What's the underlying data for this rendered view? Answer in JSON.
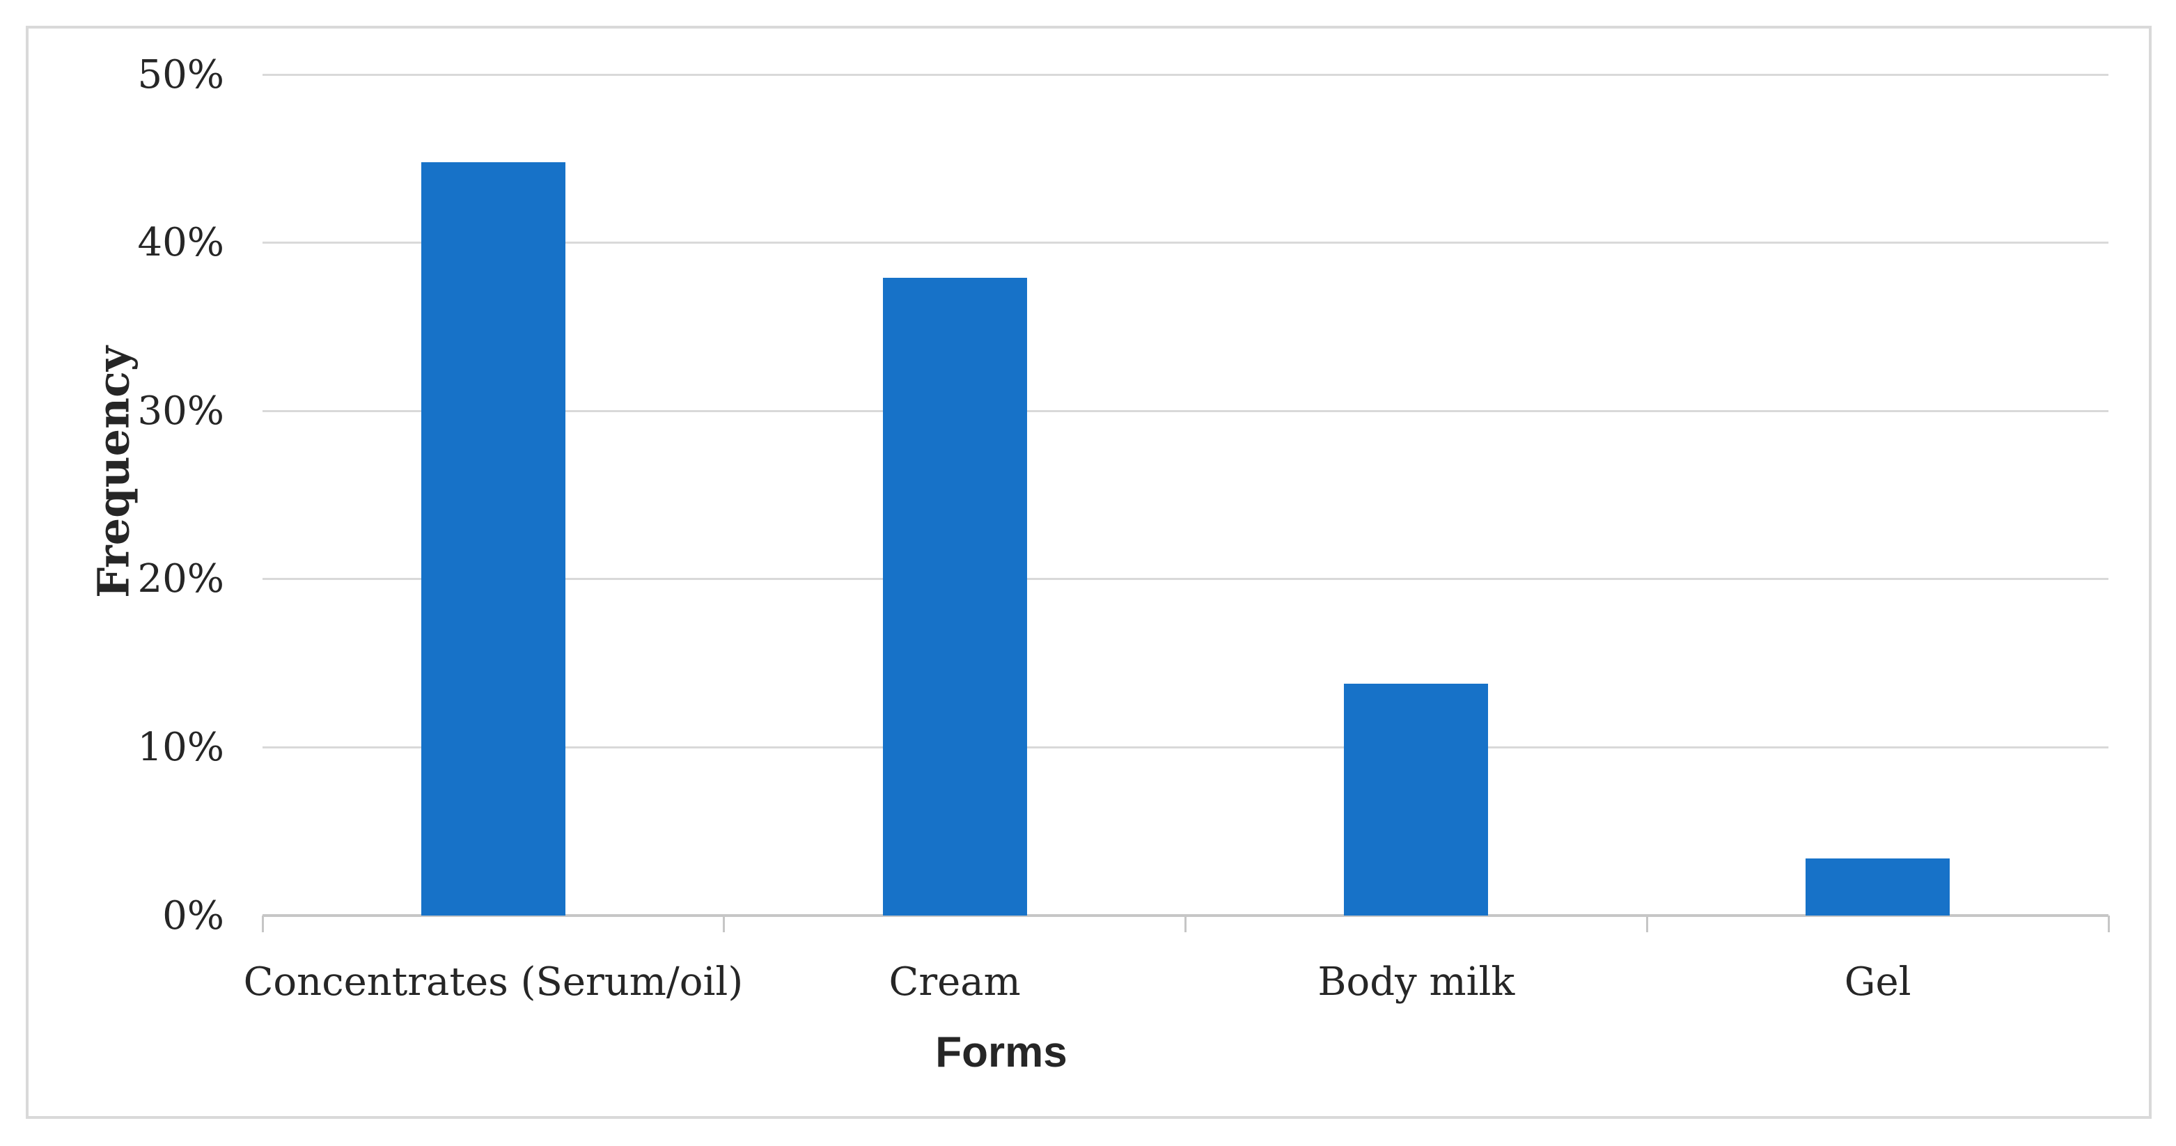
{
  "figure": {
    "background": "#FFFFFF",
    "border_color": "#D9D9D9"
  },
  "chart_data": {
    "type": "bar",
    "title": "",
    "categories": [
      "Concentrates (Serum/oil)",
      "Cream",
      "Body milk",
      "Gel"
    ],
    "values": [
      44.8,
      37.9,
      13.8,
      3.4
    ],
    "value_unit": "%",
    "xlabel": "Forms",
    "ylabel": "Frequency",
    "ylim": [
      0,
      50
    ],
    "ytick_step": 10,
    "ytick_labels": [
      "0%",
      "10%",
      "20%",
      "30%",
      "40%",
      "50%"
    ],
    "grid": "horizontal",
    "legend": "none",
    "bar_color": "#1772C8",
    "gridline_color": "#D9D9D9",
    "axis_line_color": "#C6C6C6",
    "text_color": "#262626"
  }
}
